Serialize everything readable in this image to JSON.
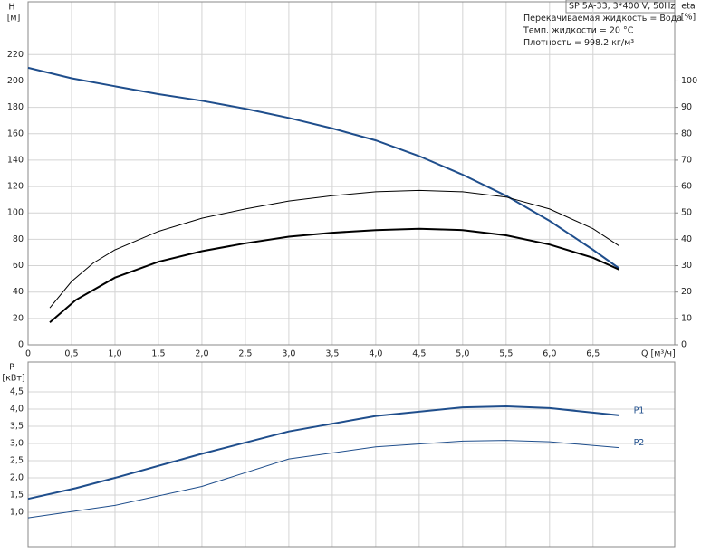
{
  "chart_data": [
    {
      "type": "line",
      "ylabel": "H",
      "ylabel_unit": "[м]",
      "y2label": "eta",
      "y2label_unit": "[%]",
      "xlabel": "Q [м³/ч]",
      "annotations": [
        "SP 5A-33, 3*400 V, 50Hz",
        "Перекачиваемая жидкость = Вода",
        "Темп. жидкости = 20 °C",
        "Плотность = 998.2 кг/м³"
      ],
      "xlim": [
        0,
        7.44
      ],
      "xticks": [
        0,
        {
          "value": 0.5,
          "label": "0,5"
        },
        {
          "value": 1.0,
          "label": "1,0"
        },
        {
          "value": 1.5,
          "label": "1,5"
        },
        {
          "value": 2.0,
          "label": "2,0"
        },
        {
          "value": 2.5,
          "label": "2,5"
        },
        {
          "value": 3.0,
          "label": "3,0"
        },
        {
          "value": 3.5,
          "label": "3,5"
        },
        {
          "value": 4.0,
          "label": "4,0"
        },
        {
          "value": 4.5,
          "label": "4,5"
        },
        {
          "value": 5.0,
          "label": "5,0"
        },
        {
          "value": 5.5,
          "label": "5,5"
        },
        {
          "value": 6.0,
          "label": "6,0"
        },
        {
          "value": 6.5,
          "label": "6,5"
        }
      ],
      "ylim": [
        0,
        260
      ],
      "yticks": [
        0,
        20,
        40,
        60,
        80,
        100,
        120,
        140,
        160,
        180,
        200,
        220
      ],
      "y2lim": [
        0,
        130
      ],
      "y2ticks": [
        0,
        10,
        20,
        30,
        40,
        50,
        60,
        70,
        80,
        90,
        100
      ],
      "grid": true,
      "series": [
        {
          "color": "#1f4e8c",
          "line_width": 2,
          "x": [
            0,
            0.5,
            1.0,
            1.5,
            2.0,
            2.5,
            3.0,
            3.5,
            4.0,
            4.5,
            5.0,
            5.5,
            6.0,
            6.5,
            6.8
          ],
          "values": [
            210,
            202,
            196,
            190,
            185,
            179,
            172,
            164,
            155,
            143,
            129,
            113,
            94,
            72,
            58
          ]
        },
        {
          "color": "#000000",
          "line_width": 1,
          "axis": "y2",
          "x": [
            0.25,
            0.5,
            0.75,
            1.0,
            1.5,
            2.0,
            2.5,
            3.0,
            3.5,
            4.0,
            4.5,
            5.0,
            5.5,
            6.0,
            6.5,
            6.8
          ],
          "values": [
            14,
            24,
            31,
            36,
            43,
            48,
            51.5,
            54.5,
            56.5,
            58,
            58.5,
            58,
            56,
            51.5,
            44,
            37.5
          ]
        },
        {
          "color": "#000000",
          "line_width": 2,
          "axis": "y2",
          "x": [
            0.25,
            0.55,
            1.0,
            1.5,
            2.0,
            2.5,
            3.0,
            3.5,
            4.0,
            4.5,
            5.0,
            5.5,
            6.0,
            6.5,
            6.8
          ],
          "values": [
            8.5,
            17,
            25.5,
            31.5,
            35.5,
            38.5,
            41,
            42.5,
            43.5,
            44,
            43.5,
            41.5,
            38,
            33,
            28.5
          ]
        }
      ]
    },
    {
      "type": "line",
      "ylabel": "P",
      "ylabel_unit": "[кВт]",
      "xlim": [
        0,
        7.44
      ],
      "ylim": [
        0,
        5.37
      ],
      "yticks": [
        {
          "value": 1.0,
          "label": "1,0"
        },
        {
          "value": 1.5,
          "label": "1,5"
        },
        {
          "value": 2.0,
          "label": "2,0"
        },
        {
          "value": 2.5,
          "label": "2,5"
        },
        {
          "value": 3.0,
          "label": "3,0"
        },
        {
          "value": 3.5,
          "label": "3,5"
        },
        {
          "value": 4.0,
          "label": "4,0"
        },
        {
          "value": 4.5,
          "label": "4,5"
        }
      ],
      "grid": true,
      "series": [
        {
          "name": "P1",
          "color": "#1f4e8c",
          "line_width": 2,
          "x": [
            0,
            0.55,
            1.0,
            2.0,
            3.0,
            4.0,
            5.0,
            5.5,
            6.0,
            6.8
          ],
          "values": [
            1.39,
            1.7,
            2.0,
            2.7,
            3.35,
            3.8,
            4.05,
            4.08,
            4.03,
            3.82
          ]
        },
        {
          "name": "P2",
          "color": "#1f4e8c",
          "line_width": 1,
          "x": [
            0,
            1.0,
            2.0,
            3.0,
            4.0,
            5.0,
            5.5,
            6.0,
            6.8
          ],
          "values": [
            0.84,
            1.2,
            1.75,
            2.55,
            2.9,
            3.07,
            3.09,
            3.05,
            2.88
          ]
        }
      ]
    }
  ]
}
